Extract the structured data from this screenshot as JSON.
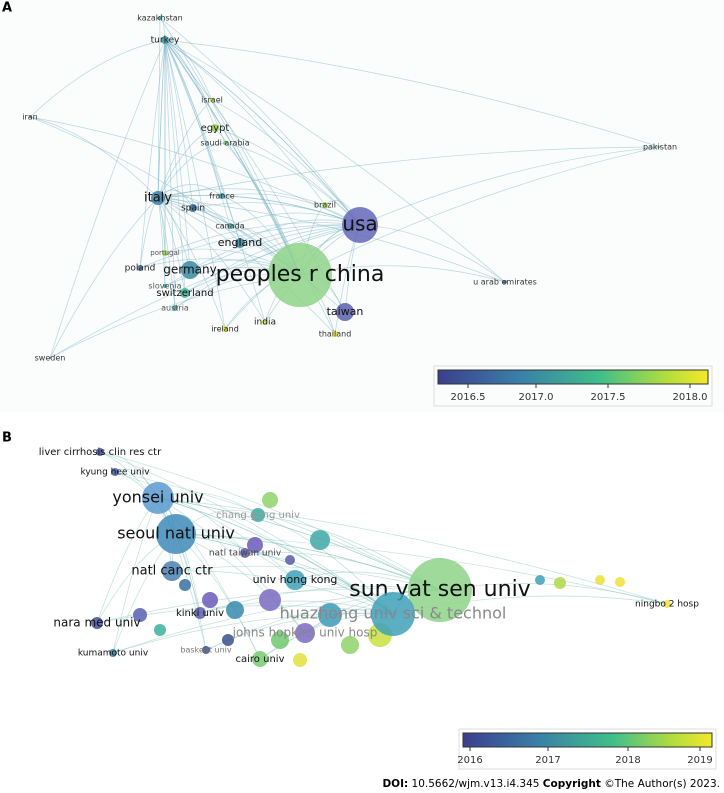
{
  "panels": [
    {
      "label": "A",
      "nodes": [
        {
          "label": "kazakhstan"
        },
        {
          "label": "turkey"
        },
        {
          "label": "iran"
        },
        {
          "label": "israel"
        },
        {
          "label": "egypt"
        },
        {
          "label": "saudi arabia"
        },
        {
          "label": "pakistan"
        },
        {
          "label": "italy"
        },
        {
          "label": "france"
        },
        {
          "label": "brazil"
        },
        {
          "label": "spain"
        },
        {
          "label": "canada"
        },
        {
          "label": "england"
        },
        {
          "label": "usa"
        },
        {
          "label": "portugal"
        },
        {
          "label": "germany"
        },
        {
          "label": "poland"
        },
        {
          "label": "peoples r china"
        },
        {
          "label": "u arab emirates"
        },
        {
          "label": "slovenia"
        },
        {
          "label": "switzerland"
        },
        {
          "label": "austria"
        },
        {
          "label": "taiwan"
        },
        {
          "label": "ireland"
        },
        {
          "label": "india"
        },
        {
          "label": "thailand"
        },
        {
          "label": "sweden"
        }
      ],
      "colorbar_ticks": [
        "2016.5",
        "2017.0",
        "2017.5",
        "2018.0"
      ]
    },
    {
      "label": "B",
      "nodes": [
        {
          "label": "liver cirrhosis clin res ctr"
        },
        {
          "label": "kyung hee univ"
        },
        {
          "label": "yonsei univ"
        },
        {
          "label": "chang gung univ"
        },
        {
          "label": "seoul natl univ"
        },
        {
          "label": "natl taiwan univ"
        },
        {
          "label": "natl canc ctr"
        },
        {
          "label": "univ hong kong"
        },
        {
          "label": "sun yat sen univ"
        },
        {
          "label": "ningbo 2 hosp"
        },
        {
          "label": "huazhong univ sci & technol"
        },
        {
          "label": "kinki univ"
        },
        {
          "label": "nara med univ"
        },
        {
          "label": "johns hopkins univ hosp"
        },
        {
          "label": "kumamoto univ"
        },
        {
          "label": "baskent univ"
        },
        {
          "label": "cairo univ"
        }
      ],
      "colorbar_ticks": [
        "2016",
        "2017",
        "2018",
        "2019"
      ]
    }
  ],
  "footer": {
    "doi_label": "DOI:",
    "doi": "10.5662/wjm.v13.i4.345",
    "copyright_label": "Copyright",
    "copyright": "©The Author(s) 2023."
  }
}
